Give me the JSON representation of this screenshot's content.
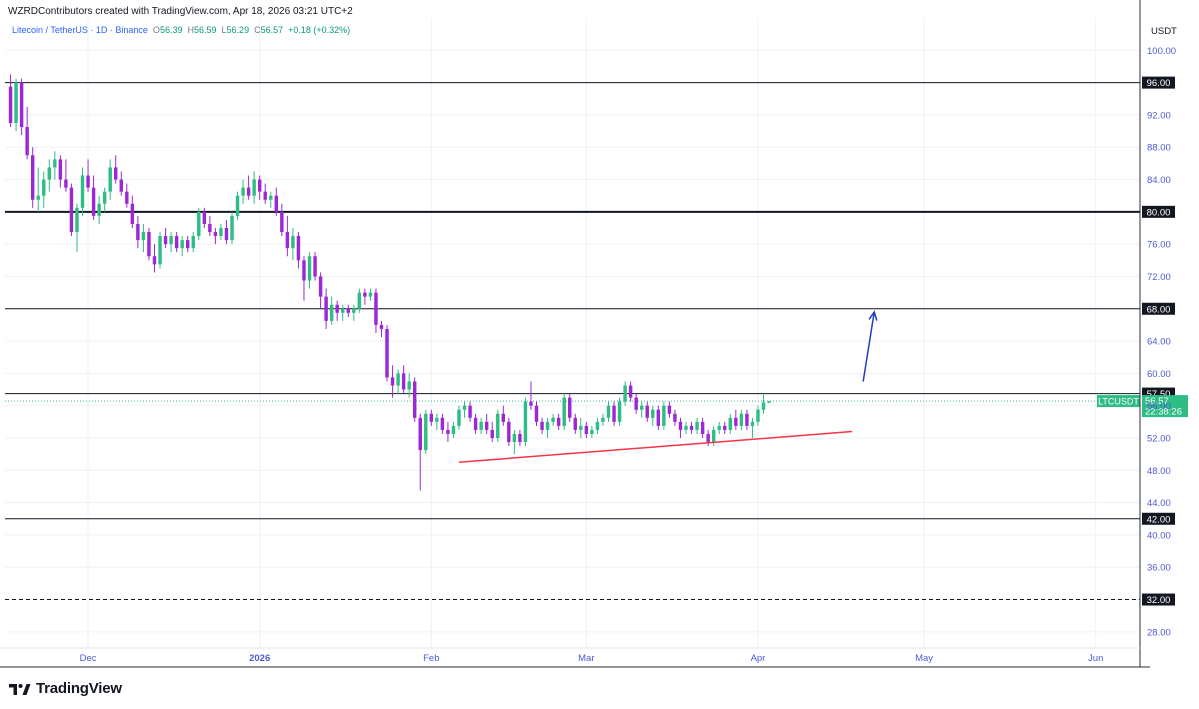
{
  "header": {
    "created_text": "WZRDContributors created with TradingView.com, Apr 18, 2026 03:21 UTC+2"
  },
  "legend": {
    "symbol_title": "Litecoin / TetherUS · 1D · Binance",
    "open_label": "O",
    "open_value": "56.39",
    "high_label": "H",
    "high_value": "56.59",
    "low_label": "L",
    "low_value": "56.29",
    "close_label": "C",
    "close_value": "56.57",
    "change": "+0.18 (+0.32%)"
  },
  "logo": {
    "text": "TradingView",
    "icon": "tradingview-logo-icon"
  },
  "colors": {
    "up": "#2ebd85",
    "down": "#9c27d6",
    "support_line": "#f23645",
    "arrow": "#1e3fbf",
    "axis_text": "#4c5bd4",
    "grid": "#eef1f8"
  },
  "chart_data": {
    "type": "candlestick",
    "symbol": "LTCUSDT",
    "currency": "USDT",
    "y_ticks": [
      100,
      96,
      92,
      88,
      84,
      80,
      76,
      72,
      68,
      64,
      60,
      56,
      52,
      48,
      44,
      40,
      36,
      32,
      28
    ],
    "y_tick_labels": [
      "100.00",
      "96.00",
      "92.00",
      "88.00",
      "84.00",
      "80.00",
      "76.00",
      "72.00",
      "68.00",
      "64.00",
      "60.00",
      "56.00",
      "52.00",
      "48.00",
      "44.00",
      "40.00",
      "36.00",
      "32.00",
      "28.00"
    ],
    "ylim": [
      26,
      104
    ],
    "x_labels": [
      {
        "label": "Dec",
        "date": "2025-12-01"
      },
      {
        "label": "2026",
        "date": "2026-01-01"
      },
      {
        "label": "Feb",
        "date": "2026-02-01"
      },
      {
        "label": "Mar",
        "date": "2026-03-01"
      },
      {
        "label": "Apr",
        "date": "2026-04-01"
      },
      {
        "label": "May",
        "date": "2026-05-01"
      },
      {
        "label": "Jun",
        "date": "2026-06-01"
      }
    ],
    "xlim": [
      "2025-11-16",
      "2026-06-09"
    ],
    "first_candle_date": "2025-11-17",
    "levels": [
      {
        "price": 96,
        "label": "96.00",
        "style": "solid",
        "width": 1
      },
      {
        "price": 80,
        "label": "80.00",
        "style": "solid",
        "width": 2
      },
      {
        "price": 68,
        "label": "68.00",
        "style": "solid",
        "width": 1
      },
      {
        "price": 57.5,
        "label": "57.50",
        "style": "solid",
        "width": 1
      },
      {
        "price": 42,
        "label": "42.00",
        "style": "solid",
        "width": 1
      },
      {
        "price": 32,
        "label": "32.00",
        "style": "dashed",
        "width": 1
      }
    ],
    "price_tag": {
      "symbol": "LTCUSDT",
      "price": "56.57",
      "countdown": "22:38:26",
      "value": 56.57
    },
    "support_trendline": {
      "from": {
        "date": "2026-02-06",
        "price": 49.0
      },
      "to": {
        "date": "2026-04-18",
        "price": 52.8
      }
    },
    "projection_arrow": {
      "from": {
        "date": "2026-04-20",
        "price": 59.0
      },
      "to": {
        "date": "2026-04-22",
        "price": 67.6
      }
    },
    "ohlc": [
      [
        95.5,
        97.0,
        90.5,
        91.0
      ],
      [
        91.0,
        96.5,
        90.0,
        96.0
      ],
      [
        96.0,
        96.5,
        89.5,
        90.5
      ],
      [
        90.5,
        93.0,
        86.5,
        87.0
      ],
      [
        87.0,
        88.0,
        80.5,
        81.5
      ],
      [
        81.5,
        85.5,
        80.0,
        82.0
      ],
      [
        82.0,
        85.0,
        80.5,
        84.0
      ],
      [
        84.0,
        86.5,
        82.5,
        85.5
      ],
      [
        85.5,
        87.5,
        84.0,
        86.5
      ],
      [
        86.5,
        87.0,
        83.0,
        84.0
      ],
      [
        84.0,
        86.5,
        82.5,
        83.0
      ],
      [
        83.0,
        83.5,
        77.0,
        77.5
      ],
      [
        77.5,
        81.0,
        75.0,
        80.5
      ],
      [
        80.5,
        85.5,
        79.5,
        84.5
      ],
      [
        84.5,
        86.5,
        82.5,
        83.0
      ],
      [
        83.0,
        84.5,
        79.0,
        79.5
      ],
      [
        79.5,
        82.0,
        78.5,
        81.0
      ],
      [
        81.0,
        83.0,
        80.0,
        82.5
      ],
      [
        82.5,
        86.5,
        81.5,
        85.5
      ],
      [
        85.5,
        87.0,
        83.5,
        84.0
      ],
      [
        84.0,
        85.0,
        82.0,
        82.5
      ],
      [
        82.5,
        83.5,
        80.5,
        81.0
      ],
      [
        81.0,
        82.0,
        78.0,
        78.5
      ],
      [
        78.5,
        79.5,
        75.5,
        76.5
      ],
      [
        76.5,
        78.5,
        75.0,
        77.5
      ],
      [
        77.5,
        78.0,
        74.0,
        74.5
      ],
      [
        74.5,
        76.0,
        72.5,
        73.5
      ],
      [
        73.5,
        77.5,
        73.0,
        77.0
      ],
      [
        77.0,
        78.0,
        75.5,
        76.0
      ],
      [
        76.0,
        77.5,
        75.0,
        77.0
      ],
      [
        77.0,
        77.5,
        75.0,
        75.5
      ],
      [
        75.5,
        77.0,
        74.5,
        76.5
      ],
      [
        76.5,
        77.0,
        75.0,
        75.5
      ],
      [
        75.5,
        77.5,
        75.0,
        77.0
      ],
      [
        77.0,
        80.5,
        76.5,
        80.0
      ],
      [
        80.0,
        80.5,
        78.0,
        78.5
      ],
      [
        78.5,
        79.5,
        77.0,
        77.5
      ],
      [
        77.5,
        78.0,
        76.0,
        77.0
      ],
      [
        77.0,
        78.5,
        76.5,
        78.0
      ],
      [
        78.0,
        79.0,
        76.0,
        76.5
      ],
      [
        76.5,
        80.0,
        76.0,
        79.5
      ],
      [
        79.5,
        82.5,
        79.0,
        82.0
      ],
      [
        82.0,
        84.0,
        81.0,
        83.0
      ],
      [
        83.0,
        84.5,
        81.5,
        82.0
      ],
      [
        82.0,
        85.0,
        81.0,
        84.0
      ],
      [
        84.0,
        84.5,
        81.5,
        82.5
      ],
      [
        82.5,
        83.5,
        81.0,
        81.5
      ],
      [
        81.5,
        82.5,
        80.5,
        82.0
      ],
      [
        82.0,
        83.0,
        79.5,
        80.0
      ],
      [
        80.0,
        81.0,
        77.0,
        77.5
      ],
      [
        77.5,
        79.5,
        74.5,
        75.5
      ],
      [
        75.5,
        78.0,
        74.0,
        77.0
      ],
      [
        77.0,
        77.5,
        73.0,
        74.0
      ],
      [
        74.0,
        74.5,
        69.0,
        71.5
      ],
      [
        71.5,
        75.0,
        70.5,
        74.5
      ],
      [
        74.5,
        75.0,
        71.5,
        72.0
      ],
      [
        72.0,
        72.5,
        68.0,
        69.5
      ],
      [
        69.5,
        70.5,
        65.5,
        66.5
      ],
      [
        66.5,
        69.5,
        66.0,
        68.5
      ],
      [
        68.5,
        69.0,
        66.5,
        67.5
      ],
      [
        67.5,
        68.5,
        66.5,
        68.0
      ],
      [
        68.0,
        68.5,
        67.0,
        67.5
      ],
      [
        67.5,
        68.5,
        66.5,
        68.0
      ],
      [
        68.0,
        70.5,
        67.5,
        70.0
      ],
      [
        70.0,
        70.5,
        68.5,
        69.5
      ],
      [
        69.5,
        70.5,
        69.0,
        70.0
      ],
      [
        70.0,
        70.5,
        65.0,
        66.0
      ],
      [
        66.0,
        66.5,
        64.5,
        65.5
      ],
      [
        65.5,
        66.0,
        59.0,
        59.5
      ],
      [
        59.5,
        61.0,
        57.0,
        58.5
      ],
      [
        58.5,
        60.5,
        57.5,
        60.0
      ],
      [
        60.0,
        61.0,
        57.5,
        58.0
      ],
      [
        58.0,
        60.0,
        57.0,
        59.0
      ],
      [
        59.0,
        59.5,
        54.0,
        54.5
      ],
      [
        54.5,
        55.0,
        45.5,
        50.5
      ],
      [
        50.5,
        55.5,
        50.0,
        55.0
      ],
      [
        55.0,
        55.5,
        53.5,
        54.0
      ],
      [
        54.0,
        55.0,
        53.0,
        54.5
      ],
      [
        54.5,
        55.0,
        52.5,
        53.0
      ],
      [
        53.0,
        54.0,
        51.5,
        52.5
      ],
      [
        52.5,
        54.0,
        52.0,
        53.5
      ],
      [
        53.5,
        56.0,
        53.0,
        55.5
      ],
      [
        55.5,
        56.5,
        54.5,
        56.0
      ],
      [
        56.0,
        56.5,
        54.0,
        54.5
      ],
      [
        54.5,
        55.0,
        52.5,
        53.0
      ],
      [
        53.0,
        54.5,
        52.5,
        54.0
      ],
      [
        54.0,
        55.0,
        52.5,
        53.0
      ],
      [
        53.0,
        54.0,
        51.5,
        52.0
      ],
      [
        52.0,
        55.5,
        51.5,
        55.0
      ],
      [
        55.0,
        56.0,
        53.5,
        54.0
      ],
      [
        54.0,
        54.5,
        51.0,
        51.5
      ],
      [
        51.5,
        53.0,
        50.0,
        52.5
      ],
      [
        52.5,
        53.0,
        51.0,
        51.5
      ],
      [
        51.5,
        57.0,
        51.0,
        56.5
      ],
      [
        56.5,
        59.0,
        55.5,
        56.0
      ],
      [
        56.0,
        56.5,
        53.5,
        54.0
      ],
      [
        54.0,
        54.5,
        52.5,
        53.0
      ],
      [
        53.0,
        54.5,
        52.0,
        54.0
      ],
      [
        54.0,
        55.0,
        53.5,
        54.5
      ],
      [
        54.5,
        55.0,
        53.0,
        53.5
      ],
      [
        53.5,
        57.5,
        53.0,
        57.0
      ],
      [
        57.0,
        57.5,
        54.0,
        54.5
      ],
      [
        54.5,
        55.0,
        52.5,
        53.0
      ],
      [
        53.0,
        54.5,
        52.0,
        53.5
      ],
      [
        53.5,
        54.0,
        52.0,
        52.5
      ],
      [
        52.5,
        53.5,
        52.0,
        53.0
      ],
      [
        53.0,
        54.5,
        52.5,
        54.0
      ],
      [
        54.0,
        55.0,
        53.5,
        54.5
      ],
      [
        54.5,
        56.5,
        54.0,
        56.0
      ],
      [
        56.0,
        56.5,
        53.5,
        54.0
      ],
      [
        54.0,
        57.0,
        53.5,
        56.5
      ],
      [
        56.5,
        59.0,
        56.0,
        58.5
      ],
      [
        58.5,
        59.0,
        56.5,
        57.0
      ],
      [
        57.0,
        57.5,
        55.0,
        55.5
      ],
      [
        55.5,
        56.5,
        54.5,
        56.0
      ],
      [
        56.0,
        56.5,
        54.0,
        54.5
      ],
      [
        54.5,
        56.0,
        53.5,
        55.5
      ],
      [
        55.5,
        56.0,
        53.0,
        53.5
      ],
      [
        53.5,
        56.5,
        53.0,
        56.0
      ],
      [
        56.0,
        56.5,
        54.5,
        55.0
      ],
      [
        55.0,
        55.5,
        53.5,
        54.0
      ],
      [
        54.0,
        54.5,
        52.0,
        53.0
      ],
      [
        53.0,
        54.0,
        52.5,
        53.5
      ],
      [
        53.5,
        54.0,
        52.5,
        53.0
      ],
      [
        53.0,
        54.5,
        52.5,
        54.0
      ],
      [
        54.0,
        54.5,
        52.0,
        52.5
      ],
      [
        52.5,
        53.0,
        51.0,
        51.5
      ],
      [
        51.5,
        53.5,
        51.0,
        53.0
      ],
      [
        53.0,
        54.0,
        52.5,
        53.5
      ],
      [
        53.5,
        54.0,
        52.5,
        53.0
      ],
      [
        53.0,
        55.0,
        52.5,
        54.5
      ],
      [
        54.5,
        55.5,
        53.0,
        53.5
      ],
      [
        53.5,
        55.5,
        53.0,
        55.0
      ],
      [
        55.0,
        55.5,
        53.0,
        53.5
      ],
      [
        53.5,
        54.5,
        52.0,
        54.0
      ],
      [
        54.0,
        56.0,
        53.5,
        55.5
      ],
      [
        55.5,
        57.5,
        55.0,
        56.4
      ],
      [
        56.39,
        56.59,
        56.29,
        56.57
      ]
    ]
  }
}
